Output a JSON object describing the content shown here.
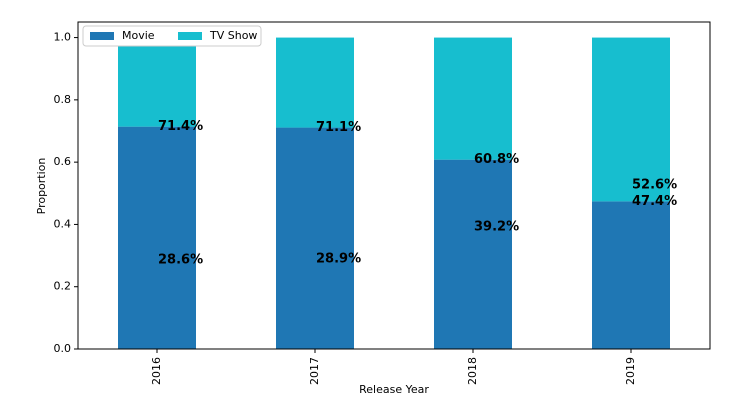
{
  "chart_data": {
    "type": "stacked_bar",
    "x_label": "Release Year",
    "y_label": "Proportion",
    "categories": [
      "2016",
      "2017",
      "2018",
      "2019"
    ],
    "series": [
      {
        "name": "Movie",
        "color": "#1f77b4",
        "values": [
          0.714,
          0.711,
          0.608,
          0.474
        ],
        "value_labels": [
          "71.4%",
          "71.1%",
          "60.8%",
          "47.4%"
        ]
      },
      {
        "name": "TV Show",
        "color": "#17becf",
        "values": [
          0.286,
          0.289,
          0.392,
          0.526
        ],
        "value_labels": [
          "28.6%",
          "28.9%",
          "39.2%",
          "52.6%"
        ]
      }
    ],
    "ylim": [
      0,
      1.05
    ],
    "yticks": [
      {
        "value": 0,
        "label": "0.0"
      },
      0.2,
      0.4,
      0.6,
      0.8,
      {
        "value": 1,
        "label": "1.0"
      }
    ],
    "legend": "upper left"
  }
}
